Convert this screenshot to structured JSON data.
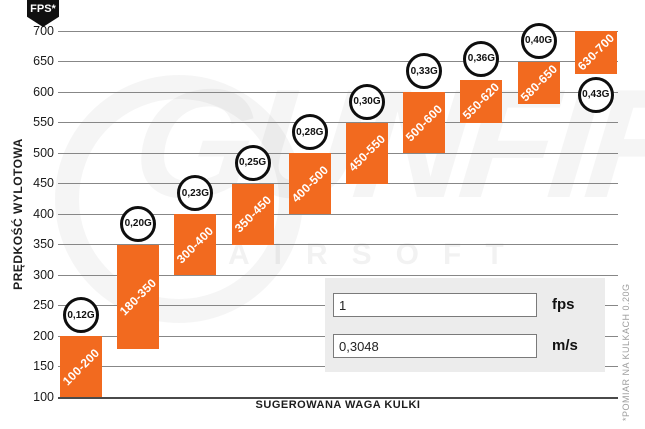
{
  "badge": {
    "label": "FPS*"
  },
  "axes": {
    "y_title": "PRĘDKOŚĆ WYLOTOWA",
    "x_title": "SUGEROWANA WAGA KULKI"
  },
  "footnote": "*POMIAR NA KULKACH 0.20G",
  "watermark": {
    "brand": "GUNFIRE",
    "sub": "AIRSOFT"
  },
  "colors": {
    "bar": "#F26A1F",
    "grid": "#878787",
    "baseline": "#4a4a4a",
    "badge_bg": "#101010",
    "panel_bg": "#ececec"
  },
  "converter": {
    "fps_value": "1",
    "fps_label": "fps",
    "ms_value": "0,3048",
    "ms_label": "m/s"
  },
  "chart_data": {
    "type": "bar",
    "subtype": "floating-range-bars",
    "title": "",
    "xlabel": "SUGEROWANA WAGA KULKI",
    "ylabel": "PRĘDKOŚĆ WYLOTOWA (FPS)",
    "ylim": [
      100,
      700
    ],
    "ytick_step": 50,
    "grid": true,
    "categories": [
      "0,12G",
      "0,20G",
      "0,23G",
      "0,25G",
      "0,28G",
      "0,30G",
      "0,33G",
      "0,36G",
      "0,40G",
      "0,43G"
    ],
    "bars": [
      {
        "weight": "0,12G",
        "range": [
          100,
          200
        ],
        "label": "100-200",
        "weight_label_pos": "above"
      },
      {
        "weight": "0,20G",
        "range": [
          180,
          350
        ],
        "label": "180-350",
        "weight_label_pos": "above"
      },
      {
        "weight": "0,23G",
        "range": [
          300,
          400
        ],
        "label": "300-400",
        "weight_label_pos": "above"
      },
      {
        "weight": "0,25G",
        "range": [
          350,
          450
        ],
        "label": "350-450",
        "weight_label_pos": "above"
      },
      {
        "weight": "0,28G",
        "range": [
          400,
          500
        ],
        "label": "400-500",
        "weight_label_pos": "above"
      },
      {
        "weight": "0,30G",
        "range": [
          450,
          550
        ],
        "label": "450-550",
        "weight_label_pos": "above"
      },
      {
        "weight": "0,33G",
        "range": [
          500,
          600
        ],
        "label": "500-600",
        "weight_label_pos": "above"
      },
      {
        "weight": "0,36G",
        "range": [
          550,
          620
        ],
        "label": "550-620",
        "weight_label_pos": "above"
      },
      {
        "weight": "0,40G",
        "range": [
          580,
          650
        ],
        "label": "580-650",
        "weight_label_pos": "above"
      },
      {
        "weight": "0,43G",
        "range": [
          630,
          700
        ],
        "label": "630-700",
        "weight_label_pos": "below"
      }
    ]
  }
}
